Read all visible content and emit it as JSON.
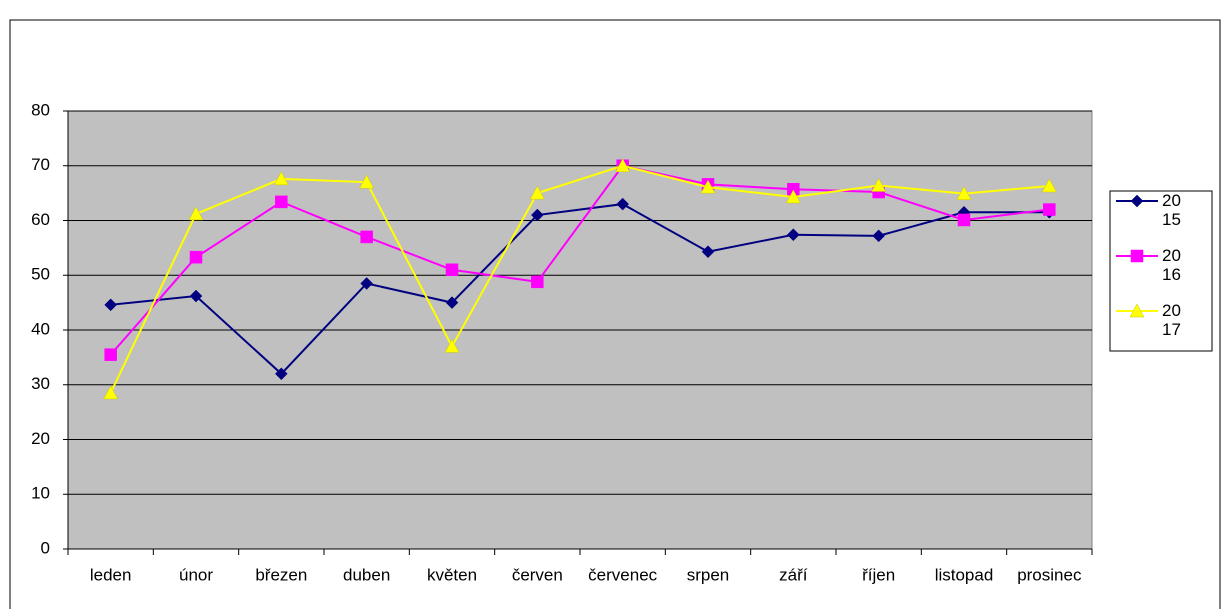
{
  "chart_data": {
    "type": "line",
    "categories": [
      "leden",
      "únor",
      "březen",
      "duben",
      "květen",
      "červen",
      "červenec",
      "srpen",
      "září",
      "říjen",
      "listopad",
      "prosinec"
    ],
    "series": [
      {
        "name": "2015",
        "color": "#000080",
        "marker": "diamond",
        "values": [
          44.6,
          46.2,
          32,
          48.5,
          45,
          61,
          63,
          54.3,
          57.4,
          57.2,
          61.5,
          61.5
        ]
      },
      {
        "name": "2016",
        "color": "#ff00ff",
        "marker": "square",
        "values": [
          35.5,
          53.3,
          63.4,
          57,
          51,
          48.8,
          70,
          66.6,
          65.7,
          65.2,
          60.1,
          62
        ]
      },
      {
        "name": "2017",
        "color": "#ffff00",
        "marker": "triangle",
        "values": [
          28.5,
          61.2,
          67.6,
          67,
          37,
          65,
          70,
          66.1,
          64.3,
          66.4,
          64.9,
          66.3
        ]
      }
    ],
    "ylim": [
      0,
      80
    ],
    "yticks": [
      0,
      10,
      20,
      30,
      40,
      50,
      60,
      70,
      80
    ],
    "grid": true,
    "legend": "right"
  }
}
